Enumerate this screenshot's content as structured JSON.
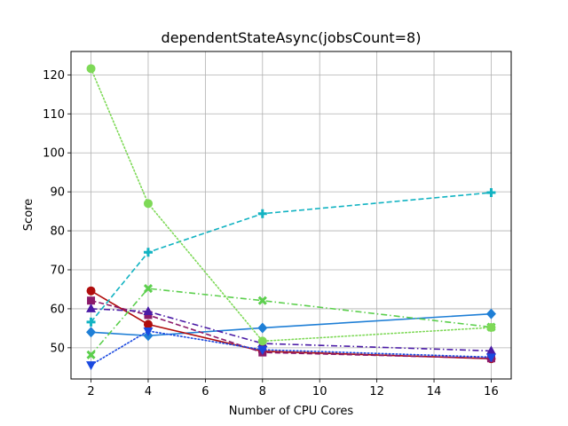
{
  "chart_data": {
    "type": "line",
    "title": "dependentStateAsync(jobsCount=8)",
    "xlabel": "Number of CPU Cores",
    "ylabel": "Score",
    "xlim": [
      1.3,
      16.7
    ],
    "ylim": [
      42,
      126
    ],
    "xticks": [
      2,
      4,
      6,
      8,
      10,
      12,
      14,
      16
    ],
    "yticks": [
      50,
      60,
      70,
      80,
      90,
      100,
      110,
      120
    ],
    "grid": true,
    "x": [
      2,
      4,
      8,
      16
    ],
    "series": [
      {
        "values": [
          54.0,
          53.1,
          55.1,
          58.7
        ],
        "color": "#1f7fd6",
        "dash": "solid",
        "marker": "diamond"
      },
      {
        "values": [
          64.6,
          56.0,
          49.1,
          47.2
        ],
        "color": "#b00d0d",
        "dash": "solid",
        "marker": "circle"
      },
      {
        "values": [
          62.1,
          58.4,
          48.8,
          47.3
        ],
        "color": "#8b1a6b",
        "dash": "dashed",
        "marker": "square"
      },
      {
        "values": [
          60.0,
          59.3,
          51.1,
          49.2
        ],
        "color": "#4a1aa6",
        "dash": "dashdot",
        "marker": "triangle-up"
      },
      {
        "values": [
          45.6,
          54.3,
          49.5,
          47.6
        ],
        "color": "#1a49e0",
        "dash": "dotted",
        "marker": "triangle-down"
      },
      {
        "values": [
          56.6,
          74.5,
          84.4,
          89.8
        ],
        "color": "#12b3c2",
        "dash": "dashed",
        "marker": "plus"
      },
      {
        "values": [
          48.2,
          65.2,
          62.1,
          55.3
        ],
        "color": "#5ccf4d",
        "dash": "dashdot",
        "marker": "x"
      },
      {
        "values": [
          121.6,
          87.0,
          51.7,
          55.2
        ],
        "color": "#7ed957",
        "dash": "dotted",
        "marker": "circle"
      }
    ]
  }
}
